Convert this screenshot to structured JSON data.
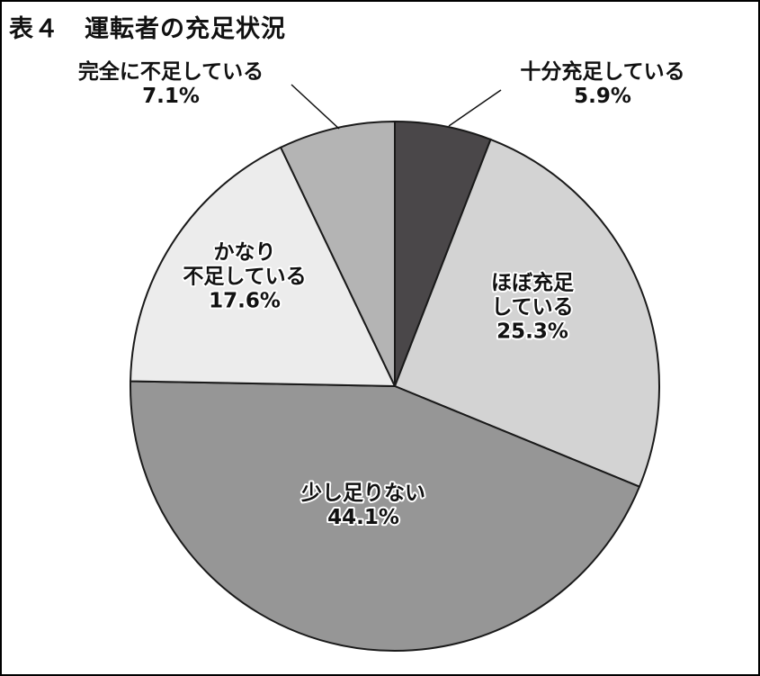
{
  "chart_data": {
    "type": "pie",
    "title": "表４　運転者の充足状況",
    "start_angle_deg": 0,
    "direction": "clockwise",
    "slices": [
      {
        "lines": [
          "十分充足している"
        ],
        "pct_label": "5.9%",
        "value": 5.9,
        "color": "#4a4749"
      },
      {
        "lines": [
          "ほぼ充足",
          "している"
        ],
        "pct_label": "25.3%",
        "value": 25.3,
        "color": "#d3d3d3"
      },
      {
        "lines": [
          "少し足りない"
        ],
        "pct_label": "44.1%",
        "value": 44.1,
        "color": "#969696"
      },
      {
        "lines": [
          "かなり",
          "不足している"
        ],
        "pct_label": "17.6%",
        "value": 17.6,
        "color": "#ececec"
      },
      {
        "lines": [
          "完全に不足している"
        ],
        "pct_label": "7.1%",
        "value": 7.1,
        "color": "#b4b4b4"
      }
    ]
  }
}
